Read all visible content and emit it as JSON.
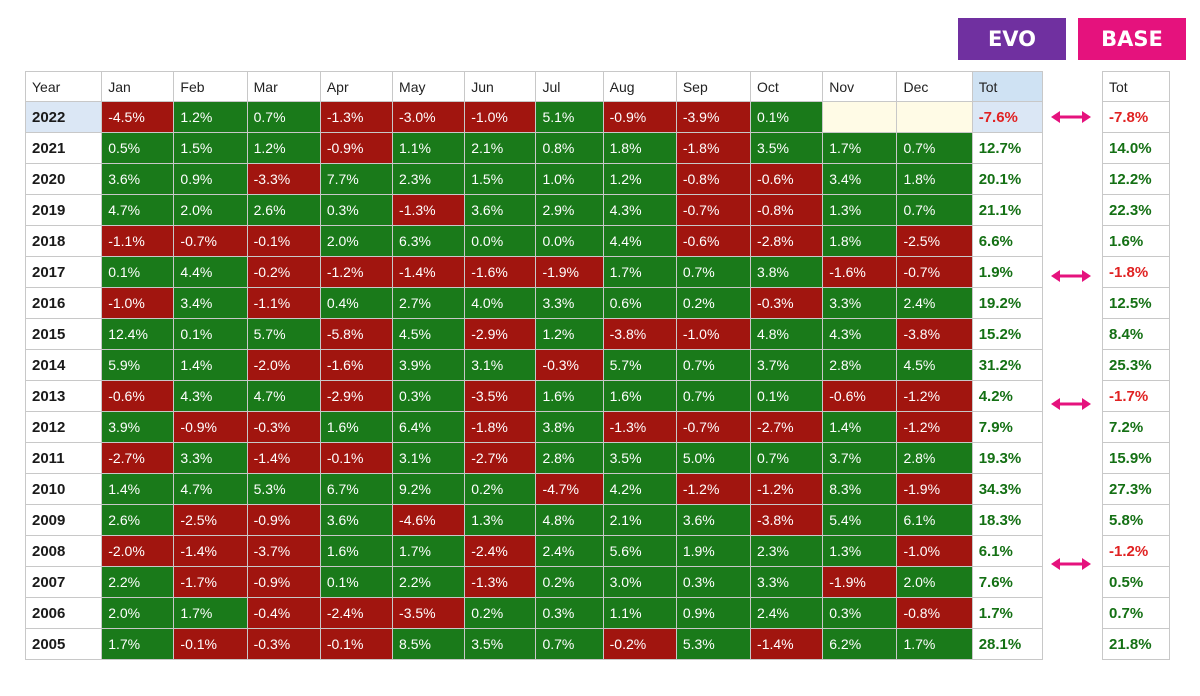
{
  "labels": {
    "evo": "EVO",
    "base": "BASE"
  },
  "colors": {
    "evo": "#7030a0",
    "base": "#e5127d",
    "positive": "#1a7a1a",
    "negative": "#a1150f",
    "arrow": "#e5127d"
  },
  "evo_table": {
    "headers": [
      "Year",
      "Jan",
      "Feb",
      "Mar",
      "Apr",
      "May",
      "Jun",
      "Jul",
      "Aug",
      "Sep",
      "Oct",
      "Nov",
      "Dec",
      "Tot"
    ],
    "rows": [
      {
        "year": "2022",
        "months": [
          "-4.5%",
          "1.2%",
          "0.7%",
          "-1.3%",
          "-3.0%",
          "-1.0%",
          "5.1%",
          "-0.9%",
          "-3.9%",
          "0.1%",
          "",
          ""
        ],
        "tot": "-7.6%"
      },
      {
        "year": "2021",
        "months": [
          "0.5%",
          "1.5%",
          "1.2%",
          "-0.9%",
          "1.1%",
          "2.1%",
          "0.8%",
          "1.8%",
          "-1.8%",
          "3.5%",
          "1.7%",
          "0.7%"
        ],
        "tot": "12.7%"
      },
      {
        "year": "2020",
        "months": [
          "3.6%",
          "0.9%",
          "-3.3%",
          "7.7%",
          "2.3%",
          "1.5%",
          "1.0%",
          "1.2%",
          "-0.8%",
          "-0.6%",
          "3.4%",
          "1.8%"
        ],
        "tot": "20.1%"
      },
      {
        "year": "2019",
        "months": [
          "4.7%",
          "2.0%",
          "2.6%",
          "0.3%",
          "-1.3%",
          "3.6%",
          "2.9%",
          "4.3%",
          "-0.7%",
          "-0.8%",
          "1.3%",
          "0.7%"
        ],
        "tot": "21.1%"
      },
      {
        "year": "2018",
        "months": [
          "-1.1%",
          "-0.7%",
          "-0.1%",
          "2.0%",
          "6.3%",
          "0.0%",
          "0.0%",
          "4.4%",
          "-0.6%",
          "-2.8%",
          "1.8%",
          "-2.5%"
        ],
        "tot": "6.6%"
      },
      {
        "year": "2017",
        "months": [
          "0.1%",
          "4.4%",
          "-0.2%",
          "-1.2%",
          "-1.4%",
          "-1.6%",
          "-1.9%",
          "1.7%",
          "0.7%",
          "3.8%",
          "-1.6%",
          "-0.7%"
        ],
        "tot": "1.9%"
      },
      {
        "year": "2016",
        "months": [
          "-1.0%",
          "3.4%",
          "-1.1%",
          "0.4%",
          "2.7%",
          "4.0%",
          "3.3%",
          "0.6%",
          "0.2%",
          "-0.3%",
          "3.3%",
          "2.4%"
        ],
        "tot": "19.2%"
      },
      {
        "year": "2015",
        "months": [
          "12.4%",
          "0.1%",
          "5.7%",
          "-5.8%",
          "4.5%",
          "-2.9%",
          "1.2%",
          "-3.8%",
          "-1.0%",
          "4.8%",
          "4.3%",
          "-3.8%"
        ],
        "tot": "15.2%"
      },
      {
        "year": "2014",
        "months": [
          "5.9%",
          "1.4%",
          "-2.0%",
          "-1.6%",
          "3.9%",
          "3.1%",
          "-0.3%",
          "5.7%",
          "0.7%",
          "3.7%",
          "2.8%",
          "4.5%"
        ],
        "tot": "31.2%"
      },
      {
        "year": "2013",
        "months": [
          "-0.6%",
          "4.3%",
          "4.7%",
          "-2.9%",
          "0.3%",
          "-3.5%",
          "1.6%",
          "1.6%",
          "0.7%",
          "0.1%",
          "-0.6%",
          "-1.2%"
        ],
        "tot": "4.2%"
      },
      {
        "year": "2012",
        "months": [
          "3.9%",
          "-0.9%",
          "-0.3%",
          "1.6%",
          "6.4%",
          "-1.8%",
          "3.8%",
          "-1.3%",
          "-0.7%",
          "-2.7%",
          "1.4%",
          "-1.2%"
        ],
        "tot": "7.9%"
      },
      {
        "year": "2011",
        "months": [
          "-2.7%",
          "3.3%",
          "-1.4%",
          "-0.1%",
          "3.1%",
          "-2.7%",
          "2.8%",
          "3.5%",
          "5.0%",
          "0.7%",
          "3.7%",
          "2.8%"
        ],
        "tot": "19.3%"
      },
      {
        "year": "2010",
        "months": [
          "1.4%",
          "4.7%",
          "5.3%",
          "6.7%",
          "9.2%",
          "0.2%",
          "-4.7%",
          "4.2%",
          "-1.2%",
          "-1.2%",
          "8.3%",
          "-1.9%"
        ],
        "tot": "34.3%"
      },
      {
        "year": "2009",
        "months": [
          "2.6%",
          "-2.5%",
          "-0.9%",
          "3.6%",
          "-4.6%",
          "1.3%",
          "4.8%",
          "2.1%",
          "3.6%",
          "-3.8%",
          "5.4%",
          "6.1%"
        ],
        "tot": "18.3%"
      },
      {
        "year": "2008",
        "months": [
          "-2.0%",
          "-1.4%",
          "-3.7%",
          "1.6%",
          "1.7%",
          "-2.4%",
          "2.4%",
          "5.6%",
          "1.9%",
          "2.3%",
          "1.3%",
          "-1.0%"
        ],
        "tot": "6.1%"
      },
      {
        "year": "2007",
        "months": [
          "2.2%",
          "-1.7%",
          "-0.9%",
          "0.1%",
          "2.2%",
          "-1.3%",
          "0.2%",
          "3.0%",
          "0.3%",
          "3.3%",
          "-1.9%",
          "2.0%"
        ],
        "tot": "7.6%"
      },
      {
        "year": "2006",
        "months": [
          "2.0%",
          "1.7%",
          "-0.4%",
          "-2.4%",
          "-3.5%",
          "0.2%",
          "0.3%",
          "1.1%",
          "0.9%",
          "2.4%",
          "0.3%",
          "-0.8%"
        ],
        "tot": "1.7%"
      },
      {
        "year": "2005",
        "months": [
          "1.7%",
          "-0.1%",
          "-0.3%",
          "-0.1%",
          "8.5%",
          "3.5%",
          "0.7%",
          "-0.2%",
          "5.3%",
          "-1.4%",
          "6.2%",
          "1.7%"
        ],
        "tot": "28.1%"
      }
    ]
  },
  "base_table": {
    "header": "Tot",
    "values": [
      "-7.8%",
      "14.0%",
      "12.2%",
      "22.3%",
      "1.6%",
      "-1.8%",
      "12.5%",
      "8.4%",
      "25.3%",
      "-1.7%",
      "7.2%",
      "15.9%",
      "27.3%",
      "5.8%",
      "-1.2%",
      "0.5%",
      "0.7%",
      "21.8%"
    ]
  },
  "arrow_years": [
    "2022",
    "2017",
    "2013",
    "2008"
  ]
}
